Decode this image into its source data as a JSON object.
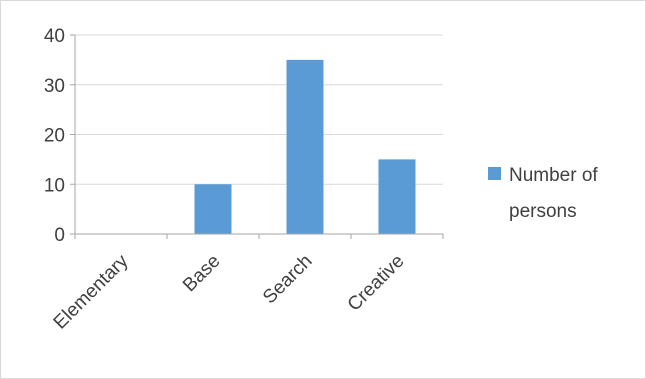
{
  "chart_data": {
    "type": "bar",
    "categories": [
      "Elementary",
      "Base",
      "Search",
      "Creative"
    ],
    "series": [
      {
        "name": "Number of persons",
        "values": [
          0,
          10,
          35,
          15
        ]
      }
    ],
    "ylim": [
      0,
      40
    ],
    "yticks": [
      0,
      10,
      20,
      30,
      40
    ],
    "grid": true,
    "legend_position": "right",
    "legend_lines": [
      "Number of",
      "persons"
    ],
    "colors": {
      "bar": "#5b9bd5",
      "grid": "#d9d9d9",
      "axis": "#a6a6a6",
      "text": "#404040"
    }
  }
}
